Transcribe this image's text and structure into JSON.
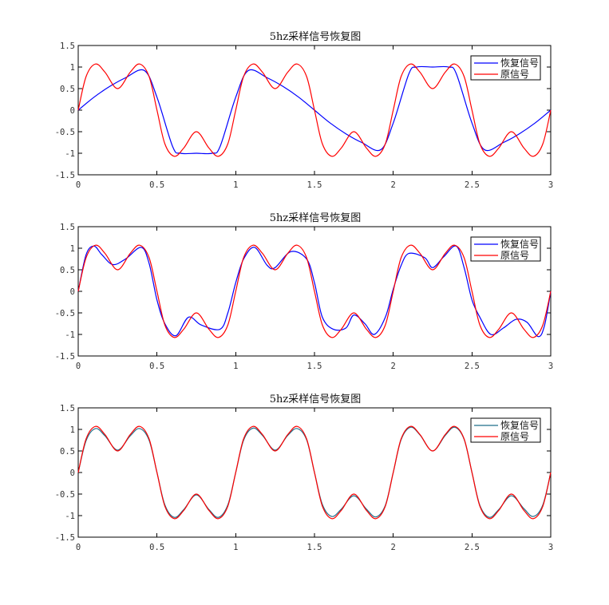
{
  "chart_data": [
    {
      "type": "line",
      "title": "5hz采样信号恢复图",
      "xlim": [
        0,
        3
      ],
      "ylim": [
        -1.5,
        1.5
      ],
      "xticks": [
        "0",
        "0.5",
        "1",
        "1.5",
        "2",
        "2.5",
        "3"
      ],
      "yticks": [
        "-1.5",
        "-1",
        "-0.5",
        "0",
        "0.5",
        "1",
        "1.5"
      ],
      "legend_position": "top-right",
      "series": [
        {
          "name": "恢复信号",
          "color": "#0000ff",
          "x": [
            0,
            0.1,
            0.2,
            0.3,
            0.42,
            0.5,
            0.6,
            0.65,
            0.75,
            0.85,
            0.9,
            1.0,
            1.08,
            1.2,
            1.3,
            1.4,
            1.5,
            1.6,
            1.7,
            1.8,
            1.92,
            2.0,
            2.1,
            2.15,
            2.25,
            2.35,
            2.4,
            2.5,
            2.58,
            2.7,
            2.8,
            2.9,
            3.0
          ],
          "y": [
            0,
            0.3,
            0.55,
            0.75,
            0.92,
            0.3,
            -0.85,
            -1,
            -1,
            -1,
            -0.85,
            0.3,
            0.92,
            0.75,
            0.55,
            0.3,
            0,
            -0.3,
            -0.55,
            -0.75,
            -0.92,
            -0.3,
            0.85,
            1,
            1,
            1,
            0.85,
            -0.3,
            -0.92,
            -0.75,
            -0.55,
            -0.3,
            0
          ]
        },
        {
          "name": "原信号",
          "color": "#ff0000",
          "x": [
            0,
            0.05,
            0.11,
            0.17,
            0.25,
            0.33,
            0.39,
            0.45,
            0.5,
            0.55,
            0.61,
            0.67,
            0.75,
            0.83,
            0.89,
            0.95,
            1.0,
            1.05,
            1.11,
            1.17,
            1.25,
            1.33,
            1.39,
            1.45,
            1.5,
            1.55,
            1.61,
            1.67,
            1.75,
            1.83,
            1.89,
            1.95,
            2.0,
            2.05,
            2.11,
            2.17,
            2.25,
            2.33,
            2.39,
            2.45,
            2.5,
            2.55,
            2.61,
            2.67,
            2.75,
            2.83,
            2.89,
            2.95,
            3.0
          ],
          "y": [
            0,
            0.78,
            1.07,
            0.88,
            0.5,
            0.88,
            1.07,
            0.78,
            0,
            -0.78,
            -1.07,
            -0.88,
            -0.5,
            -0.88,
            -1.07,
            -0.78,
            0,
            0.78,
            1.07,
            0.88,
            0.5,
            0.88,
            1.07,
            0.78,
            0,
            -0.78,
            -1.07,
            -0.88,
            -0.5,
            -0.88,
            -1.07,
            -0.78,
            0,
            0.78,
            1.07,
            0.88,
            0.5,
            0.88,
            1.07,
            0.78,
            0,
            -0.78,
            -1.07,
            -0.88,
            -0.5,
            -0.88,
            -1.07,
            -0.78,
            0
          ]
        }
      ]
    },
    {
      "type": "line",
      "title": "5hz采样信号恢复图",
      "xlim": [
        0,
        3
      ],
      "ylim": [
        -1.5,
        1.5
      ],
      "xticks": [
        "0",
        "0.5",
        "1",
        "1.5",
        "2",
        "2.5",
        "3"
      ],
      "yticks": [
        "-1.5",
        "-1",
        "-0.5",
        "0",
        "0.5",
        "1",
        "1.5"
      ],
      "legend_position": "top-right",
      "series": [
        {
          "name": "恢复信号",
          "color": "#0000ff",
          "x": [
            0,
            0.05,
            0.1,
            0.15,
            0.22,
            0.3,
            0.4,
            0.45,
            0.5,
            0.55,
            0.62,
            0.7,
            0.78,
            0.9,
            0.95,
            1.0,
            1.05,
            1.12,
            1.2,
            1.25,
            1.35,
            1.45,
            1.5,
            1.55,
            1.62,
            1.7,
            1.75,
            1.82,
            1.88,
            1.95,
            2.0,
            2.05,
            2.1,
            2.2,
            2.25,
            2.32,
            2.4,
            2.45,
            2.5,
            2.55,
            2.62,
            2.7,
            2.78,
            2.85,
            2.92,
            2.96,
            3.0
          ],
          "y": [
            0,
            0.85,
            1.05,
            0.85,
            0.62,
            0.75,
            1.02,
            0.65,
            -0.2,
            -0.75,
            -1.03,
            -0.6,
            -0.78,
            -0.88,
            -0.5,
            0.2,
            0.75,
            1.02,
            0.6,
            0.55,
            0.92,
            0.75,
            0.2,
            -0.6,
            -0.88,
            -0.85,
            -0.55,
            -0.75,
            -1.0,
            -0.6,
            0.05,
            0.6,
            0.88,
            0.78,
            0.55,
            0.8,
            1.05,
            0.55,
            -0.2,
            -0.6,
            -1.0,
            -0.85,
            -0.65,
            -0.72,
            -1.05,
            -0.8,
            0
          ]
        },
        {
          "name": "原信号",
          "color": "#ff0000",
          "x": [
            0,
            0.05,
            0.11,
            0.17,
            0.25,
            0.33,
            0.39,
            0.45,
            0.5,
            0.55,
            0.61,
            0.67,
            0.75,
            0.83,
            0.89,
            0.95,
            1.0,
            1.05,
            1.11,
            1.17,
            1.25,
            1.33,
            1.39,
            1.45,
            1.5,
            1.55,
            1.61,
            1.67,
            1.75,
            1.83,
            1.89,
            1.95,
            2.0,
            2.05,
            2.11,
            2.17,
            2.25,
            2.33,
            2.39,
            2.45,
            2.5,
            2.55,
            2.61,
            2.67,
            2.75,
            2.83,
            2.89,
            2.95,
            3.0
          ],
          "y": [
            0,
            0.78,
            1.07,
            0.88,
            0.5,
            0.88,
            1.07,
            0.78,
            0,
            -0.78,
            -1.07,
            -0.88,
            -0.5,
            -0.88,
            -1.07,
            -0.78,
            0,
            0.78,
            1.07,
            0.88,
            0.5,
            0.88,
            1.07,
            0.78,
            0,
            -0.78,
            -1.07,
            -0.88,
            -0.5,
            -0.88,
            -1.07,
            -0.78,
            0,
            0.78,
            1.07,
            0.88,
            0.5,
            0.88,
            1.07,
            0.78,
            0,
            -0.78,
            -1.07,
            -0.88,
            -0.5,
            -0.88,
            -1.07,
            -0.78,
            0
          ]
        }
      ]
    },
    {
      "type": "line",
      "title": "5hz采样信号恢复图",
      "xlim": [
        0,
        3
      ],
      "ylim": [
        -1.5,
        1.5
      ],
      "xticks": [
        "0",
        "0.5",
        "1",
        "1.5",
        "2",
        "2.5",
        "3"
      ],
      "yticks": [
        "-1.5",
        "-1",
        "-0.5",
        "0",
        "0.5",
        "1",
        "1.5"
      ],
      "legend_position": "top-right",
      "series": [
        {
          "name": "恢复信号",
          "color": "#1f6f8b",
          "x": [
            0,
            0.05,
            0.11,
            0.17,
            0.25,
            0.33,
            0.39,
            0.45,
            0.5,
            0.55,
            0.61,
            0.67,
            0.75,
            0.83,
            0.89,
            0.95,
            1.0,
            1.05,
            1.11,
            1.17,
            1.25,
            1.33,
            1.39,
            1.45,
            1.5,
            1.55,
            1.61,
            1.67,
            1.75,
            1.83,
            1.89,
            1.95,
            2.0,
            2.05,
            2.11,
            2.17,
            2.25,
            2.33,
            2.39,
            2.45,
            2.5,
            2.55,
            2.61,
            2.67,
            2.75,
            2.83,
            2.89,
            2.95,
            3.0
          ],
          "y": [
            0,
            0.74,
            1.02,
            0.85,
            0.52,
            0.85,
            1.02,
            0.75,
            0,
            -0.75,
            -1.04,
            -0.86,
            -0.52,
            -0.86,
            -1.04,
            -0.75,
            0,
            0.75,
            1.03,
            0.86,
            0.52,
            0.86,
            1.02,
            0.76,
            0,
            -0.74,
            -1.02,
            -0.85,
            -0.54,
            -0.85,
            -1.03,
            -0.76,
            0,
            0.76,
            1.05,
            0.87,
            0.5,
            0.86,
            1.05,
            0.77,
            0,
            -0.76,
            -1.04,
            -0.86,
            -0.54,
            -0.84,
            -1.02,
            -0.75,
            0
          ]
        },
        {
          "name": "原信号",
          "color": "#ff0000",
          "x": [
            0,
            0.05,
            0.11,
            0.17,
            0.25,
            0.33,
            0.39,
            0.45,
            0.5,
            0.55,
            0.61,
            0.67,
            0.75,
            0.83,
            0.89,
            0.95,
            1.0,
            1.05,
            1.11,
            1.17,
            1.25,
            1.33,
            1.39,
            1.45,
            1.5,
            1.55,
            1.61,
            1.67,
            1.75,
            1.83,
            1.89,
            1.95,
            2.0,
            2.05,
            2.11,
            2.17,
            2.25,
            2.33,
            2.39,
            2.45,
            2.5,
            2.55,
            2.61,
            2.67,
            2.75,
            2.83,
            2.89,
            2.95,
            3.0
          ],
          "y": [
            0,
            0.78,
            1.07,
            0.88,
            0.5,
            0.88,
            1.07,
            0.78,
            0,
            -0.78,
            -1.07,
            -0.88,
            -0.5,
            -0.88,
            -1.07,
            -0.78,
            0,
            0.78,
            1.07,
            0.88,
            0.5,
            0.88,
            1.07,
            0.78,
            0,
            -0.78,
            -1.07,
            -0.88,
            -0.5,
            -0.88,
            -1.07,
            -0.78,
            0,
            0.78,
            1.07,
            0.88,
            0.5,
            0.88,
            1.07,
            0.78,
            0,
            -0.78,
            -1.07,
            -0.88,
            -0.5,
            -0.88,
            -1.07,
            -0.78,
            0
          ]
        }
      ]
    }
  ]
}
